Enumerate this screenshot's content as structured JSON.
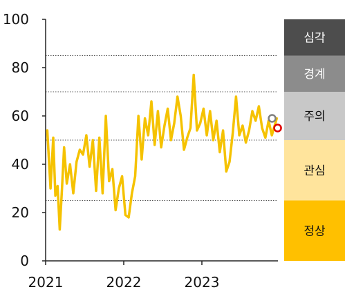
{
  "chart_data": {
    "type": "line",
    "title": "",
    "xlabel": "",
    "ylabel": "",
    "ylim": [
      0,
      100
    ],
    "y_ticks": [
      "0",
      "20",
      "40",
      "60",
      "80",
      "100"
    ],
    "x_ticks": [
      "2021",
      "2022",
      "2023"
    ],
    "grid": "dotted horizontal lines at 25, 50, 70, 85",
    "series": [
      {
        "color": "#f5c200",
        "x": [
          "2021-01",
          "2021-01",
          "2021-02",
          "2021-02",
          "2021-02",
          "2021-03",
          "2021-03",
          "2021-03",
          "2021-04",
          "2021-04",
          "2021-05",
          "2021-05",
          "2021-06",
          "2021-06",
          "2021-07",
          "2021-07",
          "2021-08",
          "2021-08",
          "2021-09",
          "2021-09",
          "2021-10",
          "2021-10",
          "2021-11",
          "2021-11",
          "2021-12",
          "2021-12",
          "2022-01",
          "2022-01",
          "2022-02",
          "2022-02",
          "2022-03",
          "2022-03",
          "2022-04",
          "2022-04",
          "2022-05",
          "2022-05",
          "2022-06",
          "2022-06",
          "2022-07",
          "2022-07",
          "2022-08",
          "2022-08",
          "2022-09",
          "2022-09",
          "2022-10",
          "2022-10",
          "2022-11",
          "2022-11",
          "2022-12",
          "2022-12",
          "2023-01",
          "2023-01",
          "2023-02",
          "2023-02",
          "2023-03",
          "2023-03",
          "2023-04",
          "2023-04",
          "2023-05",
          "2023-05",
          "2023-06",
          "2023-06",
          "2023-07",
          "2023-07",
          "2023-08",
          "2023-08",
          "2023-09",
          "2023-09",
          "2023-10",
          "2023-10",
          "2023-11",
          "2023-11",
          "2023-12"
        ],
        "values": [
          54,
          30,
          51,
          27,
          31,
          13,
          29,
          47,
          32,
          40,
          28,
          41,
          46,
          44,
          52,
          39,
          50,
          29,
          51,
          28,
          60,
          33,
          38,
          21,
          30,
          35,
          19,
          18,
          28,
          35,
          60,
          42,
          59,
          52,
          66,
          48,
          62,
          47,
          56,
          63,
          50,
          57,
          68,
          60,
          46,
          51,
          55,
          77,
          54,
          57,
          63,
          52,
          62,
          50,
          58,
          45,
          54,
          37,
          41,
          53,
          68,
          52,
          56,
          49,
          54,
          62,
          58,
          64,
          55,
          51,
          58,
          52,
          59
        ]
      }
    ],
    "markers": [
      {
        "x": "2023-12",
        "value": 59,
        "color": "#808080",
        "style": "hollow circle"
      },
      {
        "x": "2023-12",
        "value": 55,
        "color": "#e00000",
        "style": "hollow circle"
      }
    ],
    "bands": [
      {
        "label": "심각",
        "from": 85,
        "to": 100,
        "color": "#4d4d4d",
        "text_color": "#ffffff"
      },
      {
        "label": "경계",
        "from": 70,
        "to": 85,
        "color": "#8c8c8c",
        "text_color": "#ffffff"
      },
      {
        "label": "주의",
        "from": 50,
        "to": 70,
        "color": "#c8c8c8",
        "text_color": "#111111"
      },
      {
        "label": "관심",
        "from": 25,
        "to": 50,
        "color": "#ffe49c",
        "text_color": "#111111"
      },
      {
        "label": "정상",
        "from": 0,
        "to": 25,
        "color": "#ffc000",
        "text_color": "#111111"
      }
    ]
  }
}
